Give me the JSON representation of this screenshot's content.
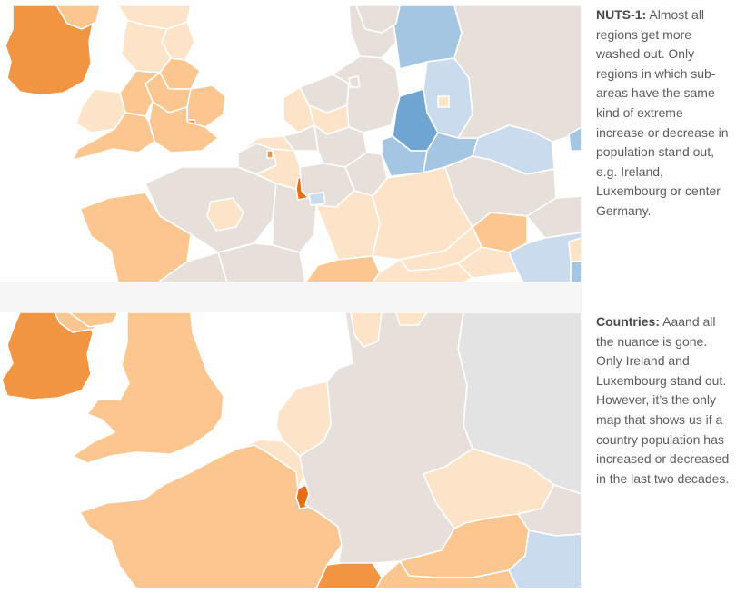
{
  "panels": [
    {
      "id": "nuts",
      "caption_title": "NUTS-1:",
      "caption_body": " Almost all regions get more washed out. Only regions in which sub-areas have the same kind of extreme increase or decrease in population stand out, e.g. Ireland, Luxembourg or center Germany."
    },
    {
      "id": "countries",
      "caption_title": "Countries:",
      "caption_body": " Aaand all the nuance is gone. Only Ireland and Luxembourg stand out. However, it’s the only map that shows us if a country population has increased or decreased in the last two decades."
    }
  ],
  "colors": {
    "strong_increase": "#f19543",
    "extreme_increase": "#e56d18",
    "moderate_increase": "#fbc690",
    "slight_increase": "#fde3c7",
    "neutral": "#e6dfda",
    "slight_decrease": "#c9dbec",
    "moderate_decrease": "#a5c6e3",
    "strong_decrease": "#6fa5d2",
    "no_data": "#e3e3e3",
    "border": "#ffffff"
  }
}
